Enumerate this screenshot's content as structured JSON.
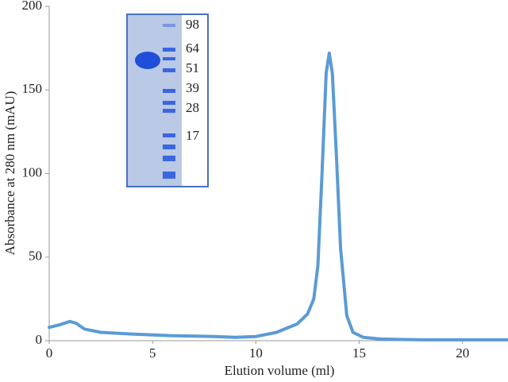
{
  "chart_data": {
    "type": "line",
    "x_label": "Elution volume (ml)",
    "y_label": "Absorbance at 280 nm (mAU)",
    "xlim": [
      0,
      22.2
    ],
    "ylim": [
      0,
      200
    ],
    "xticks": [
      0,
      5,
      10,
      15,
      20
    ],
    "yticks": [
      0,
      50,
      100,
      150,
      200
    ],
    "series": [
      {
        "color": "#5b9bd5",
        "x": [
          0,
          0.5,
          1.0,
          1.3,
          1.7,
          2.5,
          4,
          6,
          8,
          9,
          10,
          11,
          12,
          12.5,
          12.8,
          13.0,
          13.2,
          13.4,
          13.55,
          13.7,
          13.9,
          14.1,
          14.4,
          14.7,
          15.2,
          16,
          18,
          22.2
        ],
        "values": [
          8,
          9.5,
          11.5,
          10.5,
          7,
          5,
          4,
          3,
          2.5,
          2,
          2.5,
          5,
          10,
          16,
          25,
          45,
          100,
          160,
          172,
          160,
          110,
          55,
          15,
          5,
          2,
          1,
          0.5,
          0.5
        ]
      }
    ],
    "inset_labels": [
      98,
      64,
      51,
      39,
      28,
      17
    ]
  }
}
